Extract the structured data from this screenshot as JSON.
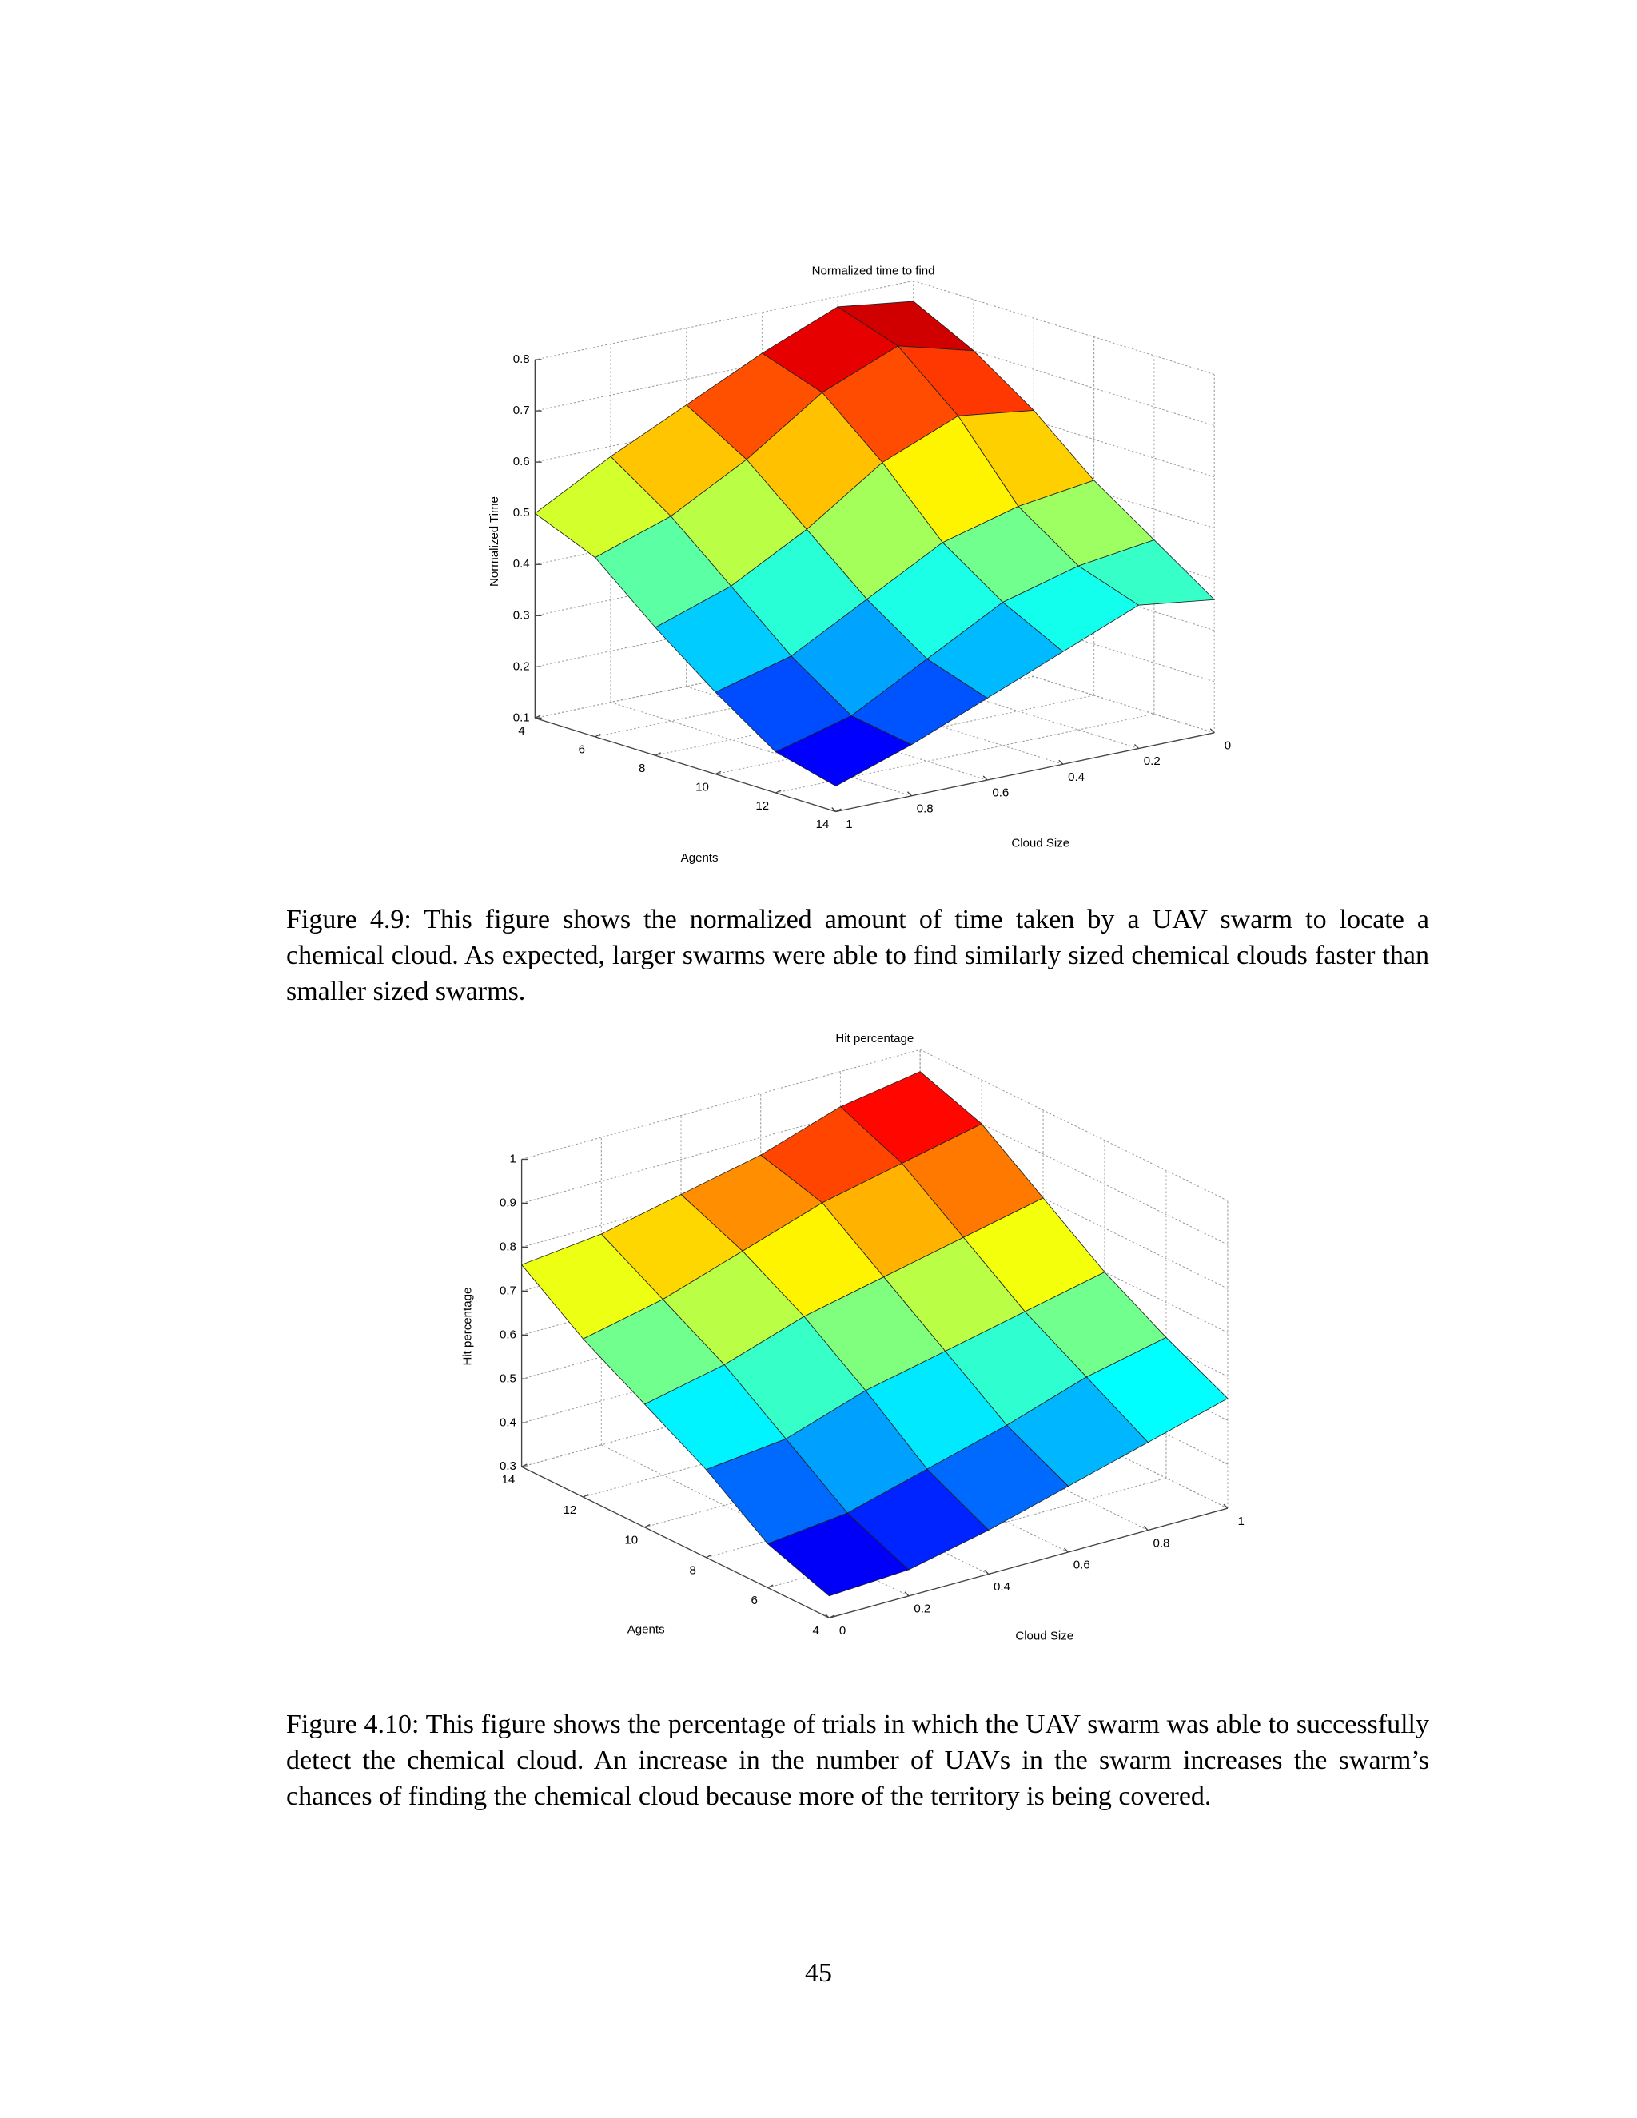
{
  "chart_data": [
    {
      "type": "surface",
      "title": "Normalized time to find",
      "x_label": "Agents",
      "y_label": "Cloud Size",
      "z_label": "Normalized Time",
      "colormap": "jet",
      "grid": true,
      "x": [
        4,
        6,
        8,
        10,
        12,
        14
      ],
      "y": [
        0,
        0.2,
        0.4,
        0.6,
        0.8,
        1
      ],
      "z": [
        [
          0.76,
          0.78,
          0.72,
          0.65,
          0.58,
          0.5
        ],
        [
          0.7,
          0.74,
          0.68,
          0.58,
          0.5,
          0.45
        ],
        [
          0.62,
          0.64,
          0.58,
          0.48,
          0.4,
          0.35
        ],
        [
          0.52,
          0.5,
          0.46,
          0.38,
          0.3,
          0.26
        ],
        [
          0.44,
          0.42,
          0.38,
          0.3,
          0.22,
          0.18
        ],
        [
          0.36,
          0.38,
          0.32,
          0.26,
          0.2,
          0.15
        ]
      ],
      "xlim": [
        4,
        14
      ],
      "xticks": [
        4,
        6,
        8,
        10,
        12,
        14
      ],
      "ylim": [
        0,
        1
      ],
      "yticks": [
        0,
        0.2,
        0.4,
        0.6,
        0.8,
        1
      ],
      "zlim": [
        0.1,
        0.8
      ],
      "zticks": [
        0.1,
        0.2,
        0.3,
        0.4,
        0.5,
        0.6,
        0.7,
        0.8
      ]
    },
    {
      "type": "surface",
      "title": "Hit percentage",
      "x_label": "Agents",
      "y_label": "Cloud Size",
      "z_label": "Hit percentage",
      "colormap": "jet",
      "grid": true,
      "x": [
        4,
        6,
        8,
        10,
        12,
        14
      ],
      "y": [
        0,
        0.2,
        0.4,
        0.6,
        0.8,
        1
      ],
      "z": [
        [
          0.35,
          0.36,
          0.4,
          0.45,
          0.5,
          0.55
        ],
        [
          0.4,
          0.42,
          0.47,
          0.52,
          0.58,
          0.62
        ],
        [
          0.5,
          0.52,
          0.58,
          0.62,
          0.66,
          0.7
        ],
        [
          0.58,
          0.62,
          0.68,
          0.72,
          0.76,
          0.8
        ],
        [
          0.66,
          0.7,
          0.76,
          0.82,
          0.86,
          0.9
        ],
        [
          0.76,
          0.78,
          0.82,
          0.86,
          0.92,
          0.95
        ]
      ],
      "xlim": [
        4,
        14
      ],
      "xticks": [
        4,
        6,
        8,
        10,
        12,
        14
      ],
      "ylim": [
        0,
        1
      ],
      "yticks": [
        0,
        0.2,
        0.4,
        0.6,
        0.8,
        1
      ],
      "zlim": [
        0.3,
        1
      ],
      "zticks": [
        0.3,
        0.4,
        0.5,
        0.6,
        0.7,
        0.8,
        0.9,
        1
      ]
    }
  ],
  "captions": [
    "Figure 4.9: This figure shows the normalized amount of time taken by a UAV swarm to locate a chemical cloud. As expected, larger swarms were able to find similarly sized chemical clouds faster than smaller sized swarms.",
    "Figure 4.10: This figure shows the percentage of trials in which the UAV swarm was able to successfully detect the chemical cloud. An increase in the number of UAVs in the swarm increases the swarm’s chances of finding the chemical cloud because more of the territory is being covered."
  ],
  "page_number": "45"
}
